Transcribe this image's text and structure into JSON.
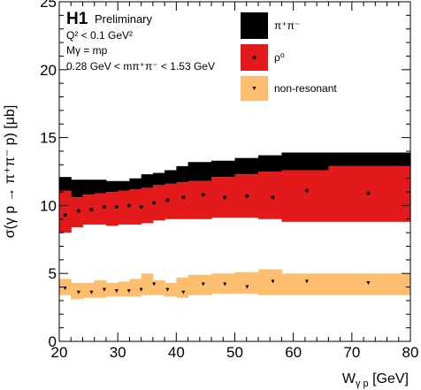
{
  "chart_data": {
    "type": "area",
    "xlabel_main": "W",
    "xlabel_sub": "γ p",
    "xlabel_unit": " [GeV]",
    "ylabel": "σ(γ p → π⁺π⁻ p) [μb]",
    "xlim": [
      20,
      80
    ],
    "ylim": [
      0,
      25
    ],
    "x_ticks": [
      "20",
      "30",
      "40",
      "50",
      "60",
      "70",
      "80"
    ],
    "y_ticks": [
      "0",
      "5",
      "10",
      "15",
      "20",
      "25"
    ],
    "x_tick_values": [
      20,
      30,
      40,
      50,
      60,
      70,
      80
    ],
    "y_tick_values": [
      0,
      5,
      10,
      15,
      20,
      25
    ],
    "bins": [
      20,
      22,
      24,
      26,
      28,
      30,
      32,
      34,
      36,
      38,
      40,
      42,
      46,
      50,
      54,
      58,
      66,
      80
    ],
    "series": [
      {
        "name": "π⁺π⁻",
        "color": "#000000",
        "band_low": [
          11.1,
          10.6,
          10.8,
          10.9,
          11.0,
          11.1,
          11.2,
          11.3,
          11.5,
          11.6,
          11.7,
          11.8,
          12.1,
          12.3,
          12.5,
          12.6,
          12.9
        ],
        "band_high": [
          12.1,
          11.9,
          11.9,
          11.9,
          11.8,
          11.8,
          12.0,
          12.3,
          12.4,
          12.6,
          12.9,
          13.2,
          13.3,
          13.5,
          13.7,
          13.9,
          13.9
        ]
      },
      {
        "name": "ρ⁰",
        "color": "#e31a1c",
        "x": [
          21.0,
          23.3,
          25.5,
          27.7,
          29.8,
          31.9,
          34.0,
          36.2,
          38.5,
          41.2,
          44.6,
          48.3,
          52.1,
          56.5,
          62.3,
          72.8
        ],
        "y": [
          9.3,
          9.6,
          9.7,
          9.9,
          9.9,
          10.0,
          9.9,
          10.2,
          10.4,
          10.6,
          10.8,
          10.6,
          10.7,
          10.6,
          11.1,
          10.9
        ],
        "band_low": [
          8.0,
          8.4,
          8.6,
          8.6,
          8.5,
          8.6,
          8.6,
          8.7,
          8.9,
          9.0,
          9.0,
          9.0,
          9.1,
          9.1,
          9.0,
          8.8,
          8.8
        ],
        "band_high": [
          11.1,
          10.6,
          10.8,
          10.9,
          11.0,
          11.1,
          11.2,
          11.3,
          11.5,
          11.6,
          11.7,
          11.8,
          12.1,
          12.3,
          12.5,
          12.6,
          12.9
        ]
      },
      {
        "name": "non-resonant",
        "color": "#fdbf6f",
        "x": [
          21.0,
          23.3,
          25.5,
          27.7,
          29.8,
          31.9,
          34.0,
          36.2,
          38.5,
          41.2,
          44.6,
          48.3,
          52.1,
          56.5,
          62.3,
          72.8
        ],
        "y": [
          3.9,
          3.6,
          3.6,
          3.8,
          3.7,
          3.7,
          3.8,
          4.2,
          3.8,
          3.6,
          4.2,
          4.2,
          4.0,
          4.4,
          4.4,
          4.3
        ],
        "band_low": [
          3.4,
          3.1,
          3.2,
          3.2,
          3.3,
          3.3,
          3.3,
          3.4,
          3.4,
          3.3,
          3.2,
          3.4,
          3.5,
          3.5,
          3.4,
          3.4,
          3.4
        ],
        "band_high": [
          4.6,
          4.3,
          4.3,
          4.5,
          4.3,
          4.4,
          4.6,
          5.0,
          4.5,
          4.3,
          4.7,
          4.9,
          5.0,
          5.1,
          5.3,
          5.0,
          5.0
        ]
      }
    ],
    "legend_placement": "top-right",
    "grid": false
  },
  "annotations": {
    "experiment": "H1",
    "status": "Preliminary",
    "line1": "Q² < 0.1 GeV²",
    "line2": "Mγ = mp",
    "line3": "0.28 GeV < mπ⁺π⁻ < 1.53 GeV"
  }
}
